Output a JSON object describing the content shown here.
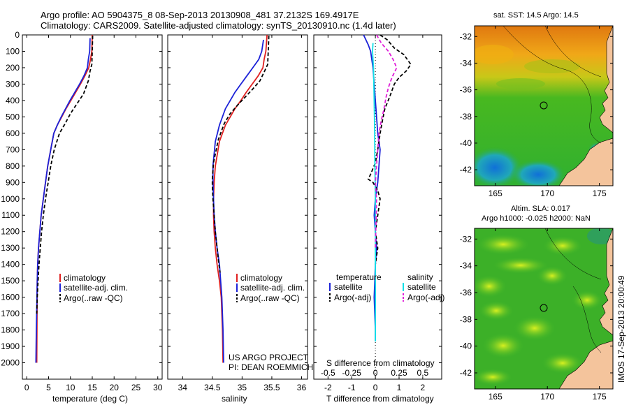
{
  "header": {
    "line1": "Argo profile: AO 5904375_8 08-Sep-2013 20130908_481 37.2132S 169.4917E",
    "line2": "Climatology: CARS2009. Satellite-adjusted climatology: synTS_20130910.nc (1.4d later)"
  },
  "colors": {
    "climatology": "#e02020",
    "satellite": "#1c22d8",
    "argo": "#000000",
    "sal_satellite": "#10e0e8",
    "sal_argo": "#e020d8"
  },
  "chart_data": [
    {
      "id": "temperature",
      "type": "line",
      "xlabel": "temperature (deg C)",
      "ylabel": "",
      "xlim": [
        -1,
        31
      ],
      "ylim": [
        2100,
        0
      ],
      "xticks": [
        0,
        5,
        10,
        15,
        20,
        25,
        30
      ],
      "yticks": [
        0,
        100,
        200,
        300,
        400,
        500,
        600,
        700,
        800,
        900,
        1000,
        1100,
        1200,
        1300,
        1400,
        1500,
        1600,
        1700,
        1800,
        1900,
        2000
      ],
      "legend": [
        "climatology",
        "satellite-adj. clim.",
        "Argo(..raw -QC)"
      ],
      "series": [
        {
          "name": "climatology",
          "style": "solid",
          "x": [
            15.0,
            14.9,
            14.6,
            14.2,
            13.3,
            12.3,
            11.2,
            10.1,
            9.0,
            8.0,
            7.0,
            6.2,
            5.5,
            4.8,
            4.3,
            3.8,
            3.3,
            3.0,
            2.7,
            2.5,
            2.4,
            2.3
          ],
          "y": [
            0,
            100,
            150,
            200,
            250,
            300,
            350,
            400,
            450,
            500,
            550,
            600,
            700,
            800,
            900,
            1000,
            1100,
            1200,
            1300,
            1400,
            1500,
            2000
          ]
        },
        {
          "name": "satellite-adj. clim.",
          "style": "solid",
          "x": [
            14.5,
            14.4,
            14.1,
            13.9,
            13.1,
            12.1,
            11.0,
            9.9,
            8.9,
            7.9,
            7.0,
            6.2,
            5.5,
            4.8,
            4.3,
            3.8,
            3.3,
            3.0,
            2.7,
            2.5,
            2.4,
            2.2,
            2.1
          ],
          "y": [
            20,
            100,
            150,
            200,
            250,
            300,
            350,
            400,
            450,
            500,
            550,
            600,
            700,
            800,
            900,
            1000,
            1100,
            1200,
            1300,
            1400,
            1500,
            1800,
            2000
          ]
        },
        {
          "name": "Argo(..raw -QC)",
          "style": "dashed",
          "x": [
            15.1,
            15.0,
            14.9,
            14.5,
            14.1,
            13.0,
            11.5,
            10.0,
            8.8,
            7.5,
            6.3,
            5.5,
            4.9,
            4.3,
            3.8,
            3.4,
            3.1,
            2.8,
            2.6,
            2.4,
            2.3
          ],
          "y": [
            5,
            100,
            180,
            220,
            280,
            360,
            420,
            480,
            540,
            600,
            700,
            800,
            900,
            1000,
            1100,
            1200,
            1300,
            1400,
            1500,
            1600,
            1700
          ]
        }
      ],
      "annotations": []
    },
    {
      "id": "salinity",
      "type": "line",
      "xlabel": "salinity",
      "ylabel": "",
      "xlim": [
        33.75,
        36.1
      ],
      "ylim": [
        2100,
        0
      ],
      "xticks": [
        34,
        34.5,
        35,
        35.5,
        36
      ],
      "xticklabels": [
        "34",
        "34.5",
        "35",
        "35.5",
        "36"
      ],
      "legend": [
        "climatology",
        "satellite-adj. clim.",
        "Argo(..raw -QC)"
      ],
      "annotations": [
        "US ARGO PROJECT",
        "PI: DEAN ROEMMICH"
      ],
      "series": [
        {
          "name": "climatology",
          "style": "solid",
          "x": [
            35.42,
            35.4,
            35.37,
            35.35,
            35.27,
            35.17,
            35.07,
            34.98,
            34.88,
            34.8,
            34.72,
            34.62,
            34.55,
            34.53,
            34.52,
            34.52,
            34.53,
            34.55,
            34.58,
            34.62,
            34.65,
            34.67,
            34.68
          ],
          "y": [
            0,
            100,
            150,
            200,
            250,
            300,
            350,
            400,
            450,
            500,
            550,
            650,
            800,
            900,
            1000,
            1100,
            1200,
            1300,
            1400,
            1500,
            1600,
            1800,
            2000
          ]
        },
        {
          "name": "satellite-adj. clim.",
          "style": "solid",
          "x": [
            35.36,
            35.33,
            35.28,
            35.18,
            35.08,
            34.98,
            34.88,
            34.8,
            34.72,
            34.62,
            34.55,
            34.51,
            34.51,
            34.52,
            34.53,
            34.55,
            34.58,
            34.62,
            34.66,
            34.68,
            34.69
          ],
          "y": [
            30,
            100,
            150,
            200,
            250,
            300,
            350,
            400,
            450,
            550,
            650,
            800,
            900,
            1000,
            1100,
            1200,
            1300,
            1400,
            1600,
            1800,
            2000
          ]
        },
        {
          "name": "Argo(..raw -QC)",
          "style": "dashed",
          "x": [
            35.45,
            35.44,
            35.43,
            35.38,
            35.3,
            35.18,
            35.05,
            34.92,
            34.8,
            34.7,
            34.6,
            34.52,
            34.5,
            34.5,
            34.51,
            34.53,
            34.55,
            34.58,
            34.61,
            34.63
          ],
          "y": [
            5,
            100,
            180,
            220,
            280,
            330,
            380,
            430,
            480,
            540,
            640,
            780,
            880,
            920,
            1000,
            1100,
            1200,
            1300,
            1400,
            1450
          ]
        }
      ]
    },
    {
      "id": "differences",
      "type": "line",
      "xlabel": "T difference from climatology",
      "xlabel_top": "S difference from climatology",
      "xlim": [
        -2.6,
        2.8
      ],
      "ylim": [
        2100,
        0
      ],
      "xticks": [
        -2,
        -1,
        0,
        1,
        2
      ],
      "top_xticks": [
        -0.5,
        -0.25,
        0,
        0.25,
        0.5
      ],
      "top_xticklabels": [
        "-0.5",
        "-0.25",
        "0",
        "0.25",
        "0.5"
      ],
      "legend_temperature": {
        "title": "temperature",
        "items": [
          "satellite",
          "Argo(-adj)"
        ]
      },
      "legend_salinity": {
        "title": "salinity",
        "items": [
          "satellite",
          "Argo(-adj)"
        ]
      },
      "series": [
        {
          "name": "T satellite",
          "style": "solid",
          "color_key": "satellite",
          "x": [
            -0.5,
            -0.3,
            -0.2,
            -0.1,
            -0.05,
            0.0,
            0.05,
            0.1,
            0.2,
            0.15,
            0.1,
            0.05,
            0.0,
            -0.05,
            0.0,
            0.05,
            0.0,
            -0.05,
            0.0,
            0.0
          ],
          "y": [
            0,
            60,
            100,
            200,
            300,
            400,
            500,
            600,
            700,
            800,
            900,
            950,
            1000,
            1100,
            1200,
            1300,
            1400,
            1600,
            1800,
            1870
          ]
        },
        {
          "name": "T Argo(-adj)",
          "style": "dashed",
          "color_key": "argo",
          "x": [
            0.2,
            0.5,
            0.8,
            1.2,
            1.5,
            1.3,
            1.0,
            0.8,
            0.6,
            0.4,
            0.3,
            0.2,
            0.1,
            0.0,
            -0.2,
            -0.3,
            -0.1,
            0.1,
            0.2,
            0.1,
            0.0,
            0.1,
            0.0
          ],
          "y": [
            0,
            30,
            80,
            120,
            180,
            220,
            260,
            300,
            380,
            450,
            520,
            600,
            700,
            780,
            850,
            880,
            900,
            950,
            1000,
            1100,
            1200,
            1300,
            1400
          ]
        },
        {
          "name": "S satellite",
          "style": "solid",
          "color_key": "sal_satellite",
          "x": [
            -0.1,
            -0.12,
            -0.08,
            -0.05,
            -0.03,
            -0.02,
            0.0,
            0.0,
            0.0,
            0.0
          ],
          "y": [
            50,
            100,
            200,
            400,
            600,
            800,
            1000,
            1400,
            1700,
            1870
          ]
        },
        {
          "name": "S Argo(-adj)",
          "style": "dashed",
          "color_key": "sal_argo",
          "x": [
            0.05,
            0.25,
            0.55,
            0.75,
            0.9,
            0.7,
            0.55,
            0.45,
            0.35,
            0.25,
            0.15,
            0.1,
            0.05,
            0.0,
            0.05,
            0.0
          ],
          "y": [
            0,
            50,
            100,
            150,
            200,
            260,
            320,
            380,
            460,
            520,
            600,
            700,
            800,
            900,
            1000,
            1300
          ]
        }
      ]
    },
    {
      "id": "sst_map",
      "type": "heatmap",
      "title": "sat. SST: 14.5 Argo: 14.5",
      "xticks": [
        165,
        170,
        175
      ],
      "yticks": [
        -32,
        -34,
        -36,
        -38,
        -40,
        -42
      ],
      "xlim": [
        163,
        176.3
      ],
      "ylim": [
        -43.2,
        -31.2
      ],
      "marker": {
        "lon": 169.4917,
        "lat": -37.2132
      }
    },
    {
      "id": "sla_map",
      "type": "heatmap",
      "title_line1": "Altim. SLA: 0.017",
      "title_line2": "Argo h1000: -0.025 h2000: NaN",
      "xticks": [
        165,
        170,
        175
      ],
      "yticks": [
        -32,
        -34,
        -36,
        -38,
        -40,
        -42
      ],
      "xlim": [
        163,
        176.3
      ],
      "ylim": [
        -43.2,
        -31.2
      ],
      "marker": {
        "lon": 169.4917,
        "lat": -37.2132
      }
    }
  ],
  "footer": {
    "stamp": "IMOS 17-Sep-2013 20:00:49"
  }
}
